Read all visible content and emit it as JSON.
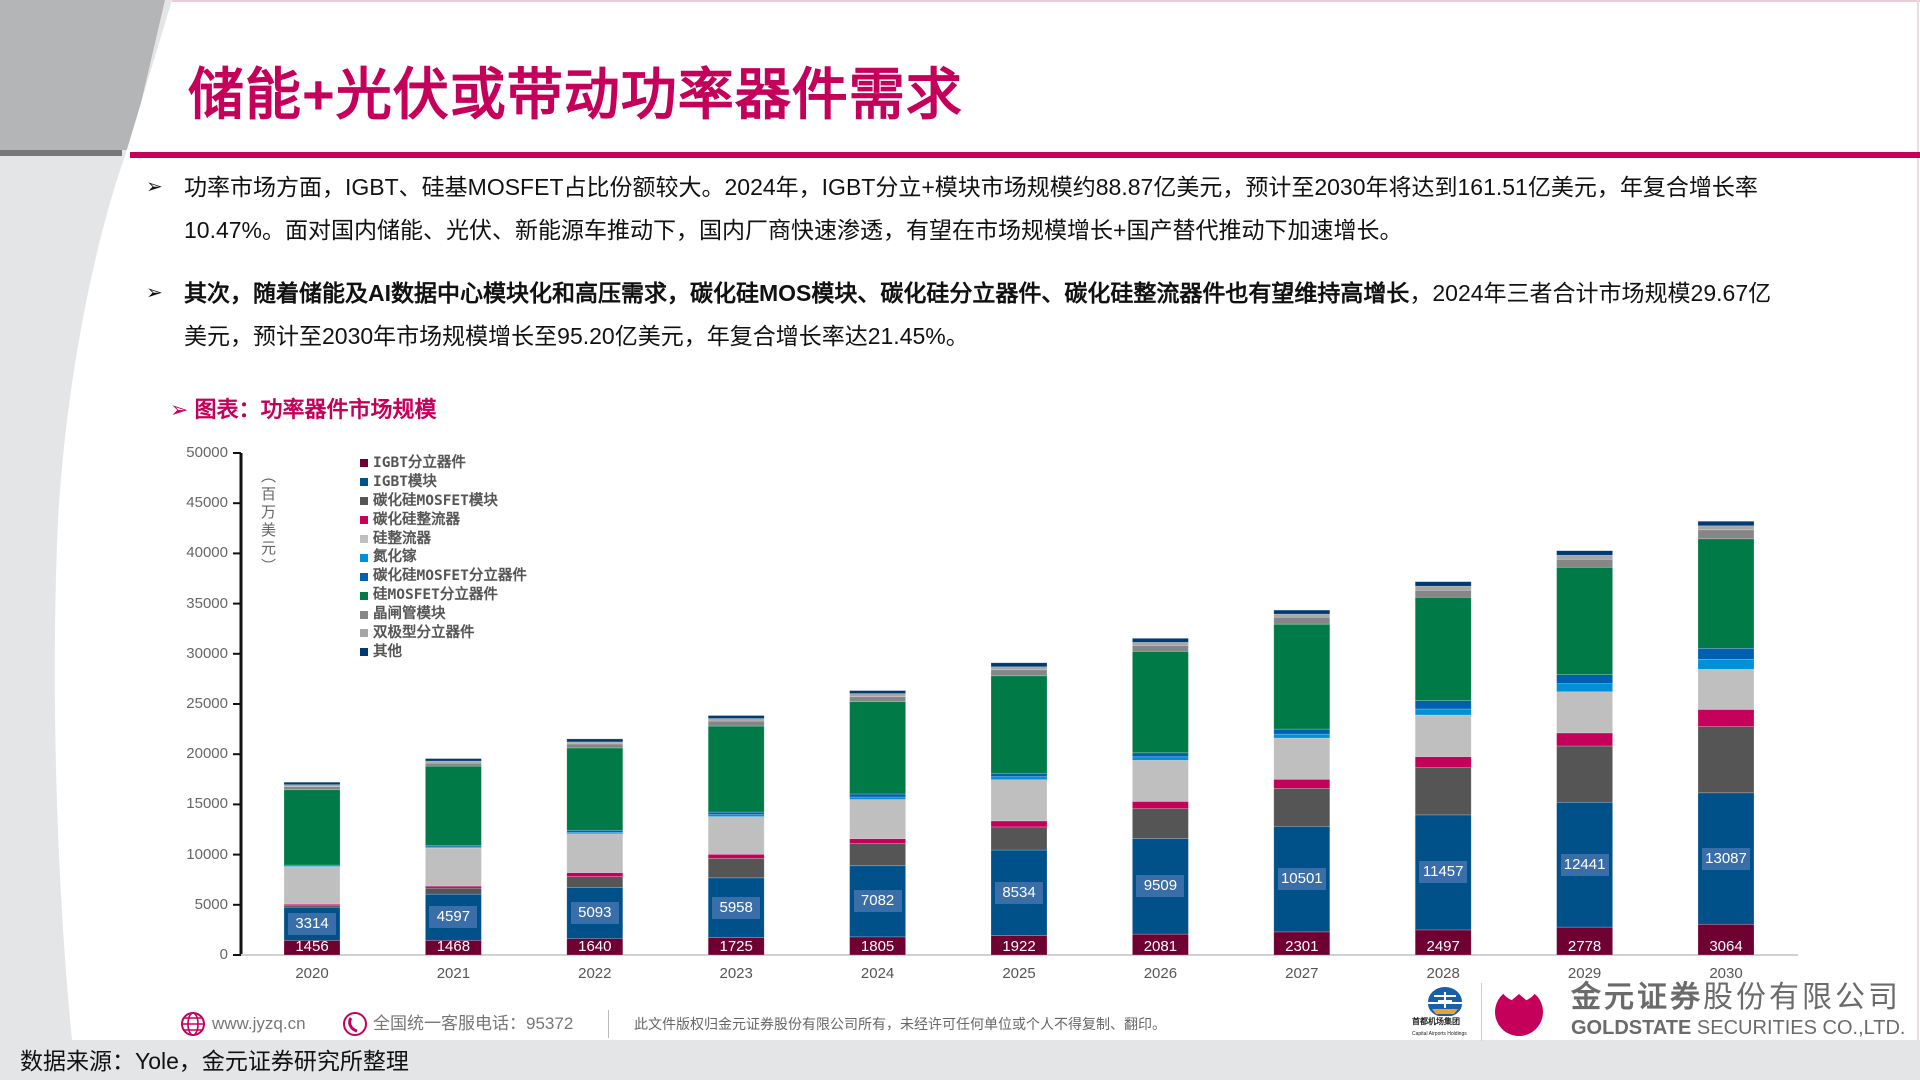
{
  "header": {
    "title": "储能+光伏或带动功率器件需求"
  },
  "bullets": [
    {
      "line1": "功率市场方面，IGBT、硅基MOSFET占比份额较大。2024年，IGBT分立+模块市场规模约88.87亿美元，预计至2030年将达到161.51亿美元，年复合增长率",
      "line2": "10.47%。面对国内储能、光伏、新能源车推动下，国内厂商快速渗透，有望在市场规模增长+国产替代推动下加速增长。"
    },
    {
      "line1_bold": "其次，随着储能及AI数据中心模块化和高压需求，碳化硅MOS模块、碳化硅分立器件、碳化硅整流器件也有望维持高增长",
      "line1_rest": "，2024年三者合计市场规模29.67亿",
      "line2": "美元，预计至2030年市场规模增长至95.20亿美元，年复合增长率达21.45%。"
    }
  ],
  "chart_title": "图表：功率器件市场规模",
  "chart_data": {
    "type": "bar",
    "stacked": true,
    "ylabel": "（百万美元）",
    "ylim": [
      0,
      50000
    ],
    "yticks": [
      "0",
      "5000",
      "10000",
      "15000",
      "20000",
      "25000",
      "30000",
      "35000",
      "40000",
      "45000",
      "50000"
    ],
    "categories": [
      "2020",
      "2021",
      "2022",
      "2023",
      "2024",
      "2025",
      "2026",
      "2027",
      "2028",
      "2029",
      "2030"
    ],
    "legend_position": "top-left",
    "grid": false,
    "series": [
      {
        "name": "IGBT分立器件",
        "color": "#6e0032",
        "labeled": true,
        "values": [
          1456,
          1468,
          1640,
          1725,
          1805,
          1922,
          2081,
          2301,
          2497,
          2778,
          3064
        ]
      },
      {
        "name": "IGBT模块",
        "color": "#00508a",
        "labeled": true,
        "values": [
          3314,
          4597,
          5093,
          5958,
          7082,
          8534,
          9509,
          10501,
          11457,
          12441,
          13087
        ]
      },
      {
        "name": "碳化硅MOSFET模块",
        "color": "#555555",
        "values": [
          200,
          600,
          1070,
          1950,
          2200,
          2300,
          3000,
          3800,
          4700,
          5600,
          6600
        ]
      },
      {
        "name": "碳化硅整流器",
        "color": "#c5005a",
        "values": [
          100,
          200,
          400,
          400,
          500,
          600,
          700,
          900,
          1100,
          1300,
          1700
        ]
      },
      {
        "name": "硅整流器",
        "color": "#bfbfbf",
        "values": [
          3710,
          3800,
          3870,
          3750,
          3900,
          4100,
          4100,
          4100,
          4150,
          4100,
          4000
        ]
      },
      {
        "name": "氮化镓",
        "color": "#0090d8",
        "values": [
          80,
          100,
          150,
          200,
          250,
          300,
          350,
          400,
          600,
          800,
          1000
        ]
      },
      {
        "name": "碳化硅MOSFET分立器件",
        "color": "#0060b0",
        "values": [
          100,
          150,
          200,
          250,
          300,
          350,
          400,
          500,
          830,
          900,
          1100
        ]
      },
      {
        "name": "硅MOSFET分立器件",
        "color": "#007a47",
        "values": [
          7500,
          7900,
          8200,
          8570,
          9200,
          9700,
          10100,
          10450,
          10300,
          10700,
          10900
        ]
      },
      {
        "name": "晶闸管模块",
        "color": "#868686",
        "values": [
          300,
          300,
          400,
          500,
          500,
          600,
          600,
          700,
          700,
          800,
          900
        ]
      },
      {
        "name": "双极型分立器件",
        "color": "#a6a6a6",
        "values": [
          200,
          200,
          200,
          250,
          300,
          300,
          300,
          300,
          400,
          400,
          400
        ]
      },
      {
        "name": "其他",
        "color": "#003a70",
        "values": [
          250,
          250,
          300,
          300,
          300,
          400,
          400,
          400,
          450,
          450,
          450
        ]
      }
    ]
  },
  "footer": {
    "website": "www.jyzq.cn",
    "hotline": "全国统一客服电话：95372",
    "copyright": "此文件版权归金元证券股份有限公司所有，未经许可任何单位或个人不得复制、翻印。",
    "partner_cn": "首都机场集团",
    "partner_en": "Capital Airports Holdings",
    "company_cn_bold": "金元证券",
    "company_cn_rest": "股份有限公司",
    "company_en_bold": "GOLDSTATE",
    "company_en_rest": " SECURITIES  CO.,LTD."
  },
  "source": "数据来源：Yole，金元证券研究所整理",
  "colors": {
    "accent": "#c5005a",
    "panel": "#e4e5e7",
    "header_grey": "#b4b5b7"
  }
}
